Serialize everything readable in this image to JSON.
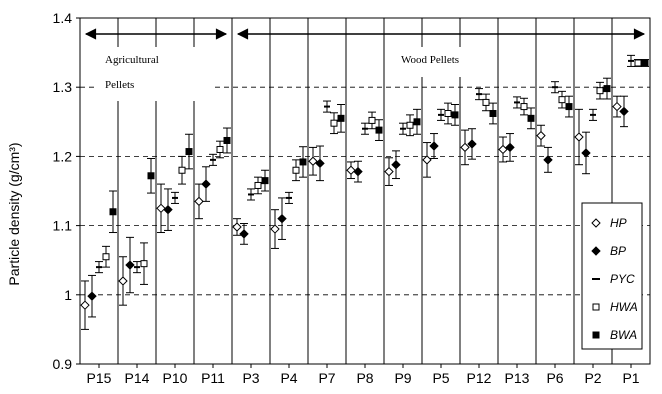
{
  "chart_data": {
    "type": "scatter",
    "ylabel": "Particle density (g/cm³)",
    "ylim": [
      0.9,
      1.4
    ],
    "y_ticks": [
      "0.9",
      "1",
      "1.1",
      "1.2",
      "1.3",
      "1.4"
    ],
    "y_tick_values": [
      0.9,
      1.0,
      1.1,
      1.2,
      1.3,
      1.4
    ],
    "grid": "horizontal dashed",
    "categories": [
      "P15",
      "P14",
      "P10",
      "P11",
      "P3",
      "P4",
      "P7",
      "P8",
      "P9",
      "P5",
      "P12",
      "P13",
      "P6",
      "P2",
      "P1"
    ],
    "annotations": [
      {
        "text_lines": [
          "Agricultural",
          "Pellets"
        ],
        "from": "P15",
        "to": "P11"
      },
      {
        "text_lines": [
          "Wood Pellets"
        ],
        "from": "P3",
        "to": "P1"
      }
    ],
    "series": [
      {
        "name": "HP",
        "marker": "open-diamond",
        "values": [
          0.985,
          1.02,
          1.125,
          1.135,
          1.098,
          1.095,
          1.193,
          1.18,
          1.178,
          1.195,
          1.213,
          1.21,
          1.23,
          1.228,
          1.272
        ],
        "errors": [
          0.035,
          0.035,
          0.035,
          0.025,
          0.012,
          0.028,
          0.02,
          0.012,
          0.02,
          0.025,
          0.025,
          0.018,
          0.015,
          0.04,
          0.015
        ]
      },
      {
        "name": "BP",
        "marker": "filled-diamond",
        "values": [
          0.998,
          1.043,
          1.123,
          1.16,
          1.088,
          1.11,
          1.19,
          1.178,
          1.188,
          1.215,
          1.218,
          1.213,
          1.195,
          1.205,
          1.265
        ],
        "errors": [
          0.03,
          0.04,
          0.03,
          0.025,
          0.015,
          0.03,
          0.025,
          0.015,
          0.02,
          0.018,
          0.022,
          0.02,
          0.018,
          0.03,
          0.022
        ]
      },
      {
        "name": "PYC",
        "marker": "dash",
        "values": [
          1.04,
          1.04,
          1.14,
          1.195,
          1.145,
          1.14,
          1.272,
          1.24,
          1.24,
          1.26,
          1.29,
          1.278,
          1.3,
          1.26,
          1.338
        ],
        "errors": [
          0.008,
          0.008,
          0.008,
          0.008,
          0.008,
          0.008,
          0.008,
          0.008,
          0.008,
          0.008,
          0.008,
          0.008,
          0.008,
          0.008,
          0.008
        ]
      },
      {
        "name": "HWA",
        "marker": "open-square",
        "values": [
          1.055,
          1.045,
          1.18,
          1.21,
          1.158,
          1.18,
          1.248,
          1.252,
          1.245,
          1.262,
          1.278,
          1.272,
          1.282,
          1.295,
          1.335
        ],
        "errors": [
          0.015,
          0.03,
          0.02,
          0.012,
          0.012,
          0.015,
          0.015,
          0.012,
          0.015,
          0.015,
          0.012,
          0.012,
          0.012,
          0.012,
          0.005
        ]
      },
      {
        "name": "BWA",
        "marker": "filled-square",
        "values": [
          1.12,
          1.172,
          1.207,
          1.223,
          1.165,
          1.192,
          1.255,
          1.238,
          1.25,
          1.26,
          1.262,
          1.255,
          1.272,
          1.298,
          1.335
        ],
        "errors": [
          0.03,
          0.025,
          0.025,
          0.018,
          0.015,
          0.022,
          0.02,
          0.015,
          0.018,
          0.015,
          0.015,
          0.015,
          0.015,
          0.015,
          0.005
        ]
      }
    ],
    "legend_position": "bottom-right",
    "colors": {
      "ink": "#000000",
      "grid": "#000000",
      "background": "#ffffff"
    }
  }
}
